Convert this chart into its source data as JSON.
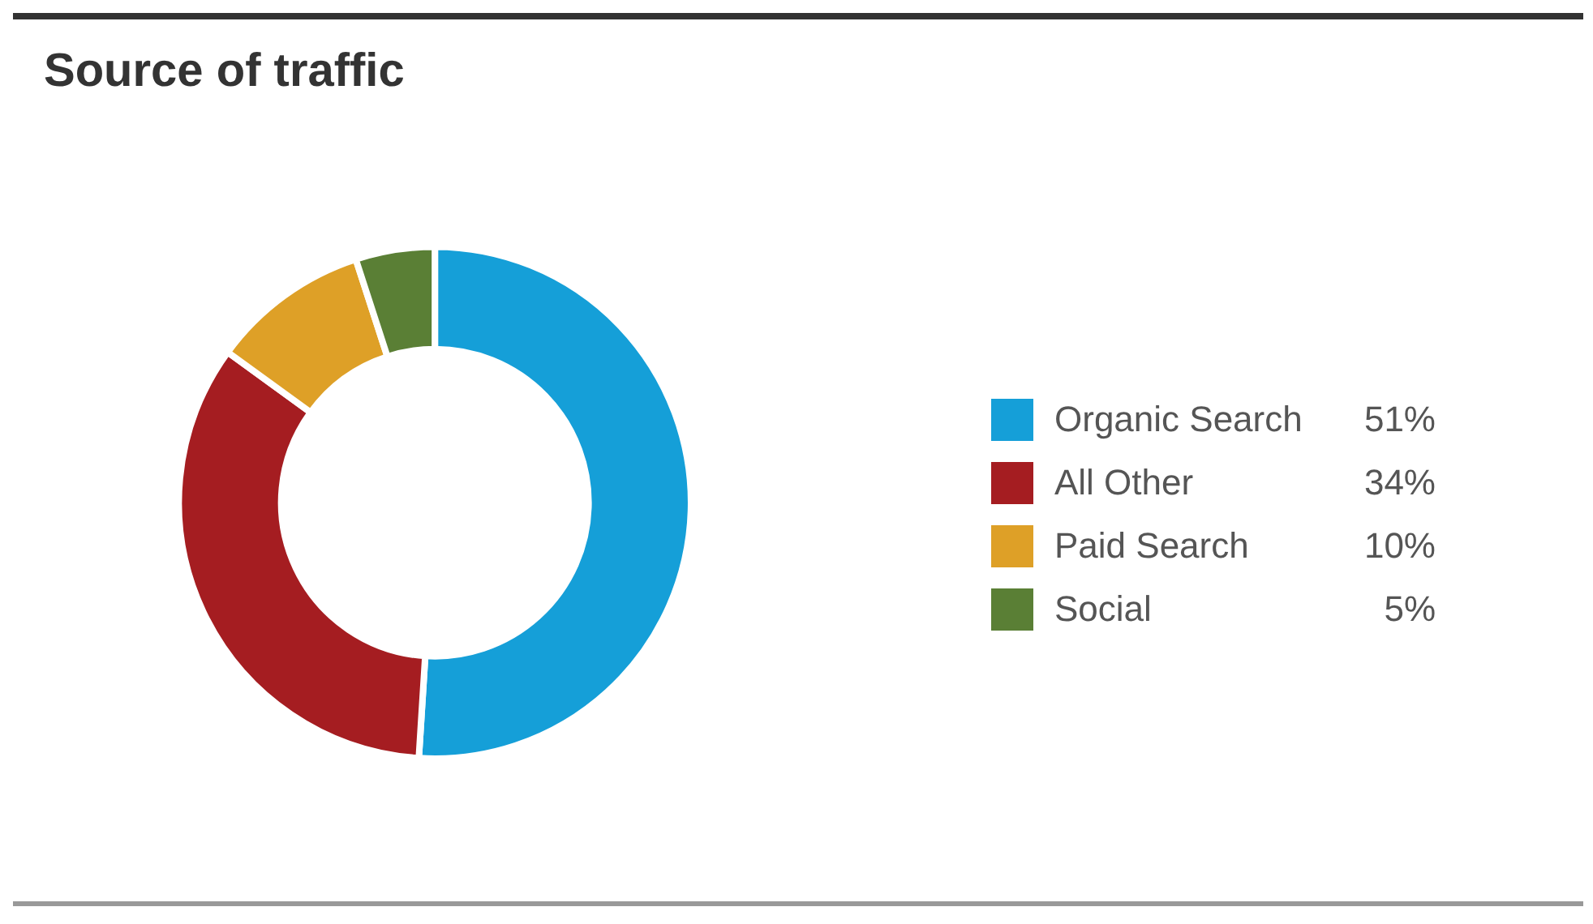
{
  "chart_data": {
    "type": "donut",
    "title": "Source of traffic",
    "categories": [
      "Organic Search",
      "All Other",
      "Paid Search",
      "Social"
    ],
    "values": [
      51,
      34,
      10,
      5
    ],
    "value_labels": [
      "51%",
      "34%",
      "10%",
      "5%"
    ],
    "colors": [
      "#159fd8",
      "#a51d21",
      "#dea027",
      "#5a7f35"
    ],
    "legend": "right"
  }
}
